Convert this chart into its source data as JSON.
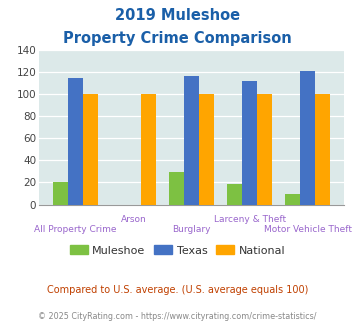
{
  "title_line1": "2019 Muleshoe",
  "title_line2": "Property Crime Comparison",
  "categories": [
    "All Property Crime",
    "Arson",
    "Burglary",
    "Larceny & Theft",
    "Motor Vehicle Theft"
  ],
  "muleshoe": [
    20,
    0,
    29,
    19,
    10
  ],
  "texas": [
    114,
    0,
    116,
    112,
    121
  ],
  "national": [
    100,
    100,
    100,
    100,
    100
  ],
  "arson_texas": 0,
  "bar_color_muleshoe": "#7dc142",
  "bar_color_texas": "#4472c4",
  "bar_color_national": "#ffa500",
  "ylim": [
    0,
    140
  ],
  "yticks": [
    0,
    20,
    40,
    60,
    80,
    100,
    120,
    140
  ],
  "title_color": "#1a5fa8",
  "plot_bg": "#dce9e9",
  "footnote1": "Compared to U.S. average. (U.S. average equals 100)",
  "footnote2": "© 2025 CityRating.com - https://www.cityrating.com/crime-statistics/",
  "footnote1_color": "#c04000",
  "footnote2_color": "#888888",
  "legend_labels": [
    "Muleshoe",
    "Texas",
    "National"
  ],
  "xlabel_color": "#9966cc",
  "upper_labels": [
    "Arson",
    "Larceny & Theft"
  ],
  "lower_labels": [
    "All Property Crime",
    "Burglary",
    "Motor Vehicle Theft"
  ]
}
